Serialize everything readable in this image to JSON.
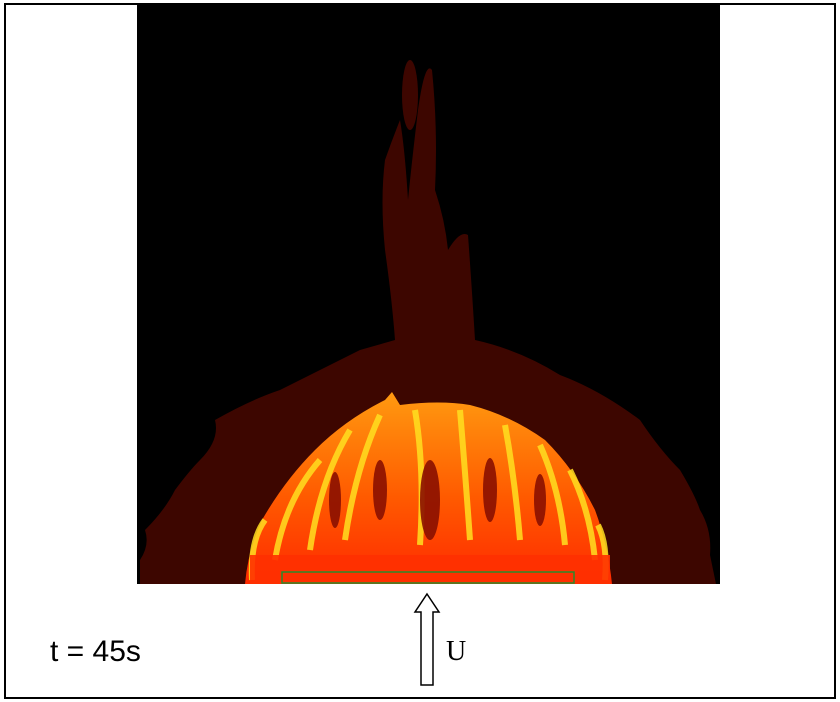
{
  "annotations": {
    "time_label": "t = 45s",
    "velocity_label": "U"
  }
}
